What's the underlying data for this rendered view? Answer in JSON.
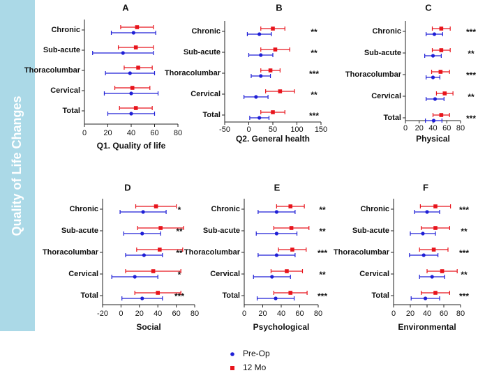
{
  "chart_data": [
    {
      "type": "errorbar",
      "title": "A",
      "xlabel": "Q1. Quality of life",
      "categories": [
        "Chronic",
        "Sub-acute",
        "Thoracolumbar",
        "Cervical",
        "Total"
      ],
      "xlim": [
        0,
        80
      ],
      "xticks": [
        0,
        20,
        40,
        60,
        80
      ],
      "series": [
        {
          "name": "Pre-Op",
          "color": "#1f1fd6",
          "values": [
            42,
            33,
            39,
            40,
            40
          ],
          "errors": [
            19,
            26,
            21,
            23,
            20
          ]
        },
        {
          "name": "12 Mo",
          "color": "#e8141c",
          "values": [
            45,
            44,
            46,
            41,
            44
          ],
          "errors": [
            14,
            15,
            12,
            15,
            14
          ]
        }
      ]
    },
    {
      "type": "errorbar",
      "title": "B",
      "xlabel": "Q2. General health",
      "categories": [
        "Chronic",
        "Sub-acute",
        "Thoracolumbar",
        "Cervical",
        "Total"
      ],
      "xlim": [
        -50,
        150
      ],
      "xticks": [
        -50,
        0,
        50,
        100,
        150
      ],
      "series": [
        {
          "color": "#1f1fd6",
          "values": [
            22,
            25,
            25,
            15,
            22
          ],
          "errors": [
            25,
            25,
            20,
            25,
            20
          ]
        },
        {
          "color": "#e8141c",
          "values": [
            50,
            55,
            45,
            65,
            50
          ],
          "errors": [
            25,
            30,
            20,
            30,
            25
          ]
        }
      ],
      "annotations": [
        "**",
        "**",
        "***",
        "**",
        "***"
      ]
    },
    {
      "type": "errorbar",
      "title": "C",
      "xlabel": "Physical",
      "categories": [
        "Chronic",
        "Sub-acute",
        "Thoracolumbar",
        "Cervical",
        "Total"
      ],
      "xlim": [
        0,
        80
      ],
      "xticks": [
        0,
        20,
        40,
        60,
        80
      ],
      "series": [
        {
          "color": "#1f1fd6",
          "values": [
            42,
            40,
            40,
            43,
            41
          ],
          "errors": [
            12,
            12,
            10,
            13,
            12
          ]
        },
        {
          "color": "#e8141c",
          "values": [
            52,
            52,
            51,
            57,
            52
          ],
          "errors": [
            13,
            13,
            13,
            12,
            12
          ]
        }
      ],
      "annotations": [
        "***",
        "**",
        "***",
        "**",
        "***"
      ]
    },
    {
      "type": "errorbar",
      "title": "D",
      "xlabel": "Social",
      "categories": [
        "Chronic",
        "Sub-acute",
        "Thoracolumbar",
        "Cervical",
        "Total"
      ],
      "xlim": [
        -20,
        80
      ],
      "xticks": [
        -20,
        0,
        20,
        40,
        60,
        80
      ],
      "series": [
        {
          "color": "#1f1fd6",
          "values": [
            24,
            23,
            25,
            15,
            23
          ],
          "errors": [
            25,
            20,
            20,
            25,
            22
          ]
        },
        {
          "color": "#e8141c",
          "values": [
            38,
            43,
            42,
            35,
            40
          ],
          "errors": [
            22,
            25,
            25,
            30,
            25
          ]
        }
      ],
      "annotations": [
        "*",
        "**",
        "**",
        "*",
        "***"
      ]
    },
    {
      "type": "errorbar",
      "title": "E",
      "xlabel": "Psychological",
      "categories": [
        "Chronic",
        "Sub-acute",
        "Thoracolumbar",
        "Cervical",
        "Total"
      ],
      "xlim": [
        0,
        80
      ],
      "xticks": [
        0,
        20,
        40,
        60,
        80
      ],
      "series": [
        {
          "color": "#1f1fd6",
          "values": [
            35,
            35,
            35,
            30,
            34
          ],
          "errors": [
            20,
            22,
            20,
            20,
            20
          ]
        },
        {
          "color": "#e8141c",
          "values": [
            50,
            51,
            52,
            46,
            50
          ],
          "errors": [
            15,
            19,
            15,
            17,
            18
          ]
        }
      ],
      "annotations": [
        "**",
        "**",
        "***",
        "**",
        "***"
      ]
    },
    {
      "type": "errorbar",
      "title": "F",
      "xlabel": "Environmental",
      "categories": [
        "Chronic",
        "Sub-acute",
        "Thoracolumbar",
        "Cervical",
        "Total"
      ],
      "xlim": [
        0,
        80
      ],
      "xticks": [
        0,
        20,
        40,
        60,
        80
      ],
      "series": [
        {
          "color": "#1f1fd6",
          "values": [
            40,
            35,
            36,
            46,
            38
          ],
          "errors": [
            15,
            15,
            17,
            15,
            17
          ]
        },
        {
          "color": "#e8141c",
          "values": [
            50,
            50,
            48,
            58,
            50
          ],
          "errors": [
            18,
            17,
            17,
            18,
            17
          ]
        }
      ],
      "annotations": [
        "***",
        "**",
        "***",
        "**",
        "***"
      ]
    }
  ],
  "sidebar": {
    "title": "Quality of Life Changes"
  }
}
